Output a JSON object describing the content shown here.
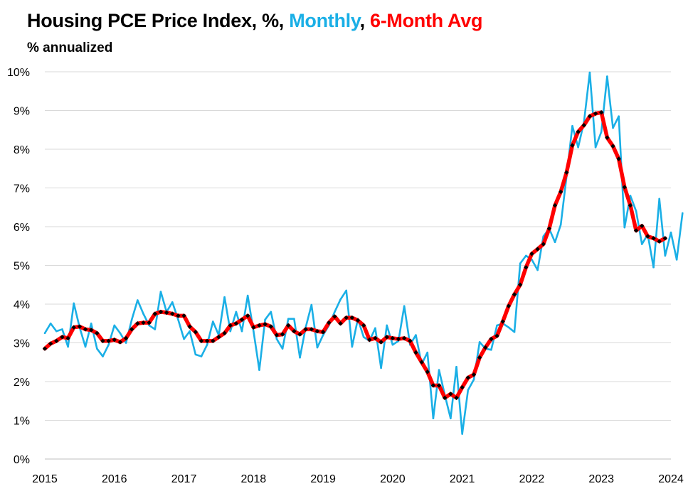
{
  "title": {
    "part1": "Housing PCE Price Index, %, ",
    "part2": "Monthly",
    "part3": ", ",
    "part4": "6-Month Avg",
    "color_monthly": "#1AAFE6",
    "color_avg": "#FF0000"
  },
  "subtitle": "% annualized",
  "chart_data": {
    "type": "line",
    "title": "Housing PCE Price Index, %, Monthly, 6-Month Avg",
    "subtitle": "% annualized",
    "xlabel": "",
    "ylabel": "",
    "ylim": [
      0,
      10
    ],
    "xlim": [
      2015,
      2024
    ],
    "grid": true,
    "yticks": [
      "0%",
      "1%",
      "2%",
      "3%",
      "4%",
      "5%",
      "6%",
      "7%",
      "8%",
      "9%",
      "10%"
    ],
    "xticks": [
      "2015",
      "2016",
      "2017",
      "2018",
      "2019",
      "2020",
      "2021",
      "2022",
      "2023",
      "2024"
    ],
    "x_start": 2015.0,
    "x_step_months": 1,
    "series": [
      {
        "name": "Monthly",
        "color": "#1AAFE6",
        "values": [
          3.25,
          3.5,
          3.3,
          3.35,
          2.9,
          4.02,
          3.4,
          2.9,
          3.5,
          2.85,
          2.65,
          2.95,
          3.45,
          3.25,
          3.0,
          3.6,
          4.1,
          3.75,
          3.45,
          3.35,
          4.32,
          3.8,
          4.05,
          3.6,
          3.1,
          3.3,
          2.7,
          2.65,
          2.95,
          3.55,
          3.2,
          4.18,
          3.3,
          3.8,
          3.3,
          4.22,
          3.3,
          2.3,
          3.6,
          3.8,
          3.1,
          2.85,
          3.62,
          3.62,
          2.62,
          3.4,
          3.98,
          2.88,
          3.2,
          3.45,
          3.8,
          4.12,
          4.35,
          2.9,
          3.62,
          3.15,
          3.05,
          3.38,
          2.35,
          3.45,
          2.95,
          3.05,
          3.95,
          2.95,
          3.2,
          2.45,
          2.75,
          1.05,
          2.3,
          1.65,
          1.05,
          2.38,
          0.65,
          1.78,
          2.05,
          3.02,
          2.85,
          2.82,
          3.45,
          3.5,
          3.4,
          3.28,
          5.05,
          5.25,
          5.15,
          4.88,
          5.75,
          5.95,
          5.6,
          6.05,
          7.3,
          8.6,
          8.05,
          8.7,
          9.98,
          8.05,
          8.45,
          9.88,
          8.55,
          8.85,
          5.98,
          6.8,
          6.4,
          5.55,
          5.8,
          4.95,
          6.72,
          5.25,
          5.85,
          5.15,
          6.35
        ]
      },
      {
        "name": "6-Month Avg",
        "color": "#FF0000",
        "marker_color": "#000000",
        "values": [
          2.85,
          2.98,
          3.05,
          3.15,
          3.12,
          3.4,
          3.42,
          3.35,
          3.33,
          3.25,
          3.05,
          3.05,
          3.08,
          3.02,
          3.12,
          3.35,
          3.5,
          3.52,
          3.52,
          3.75,
          3.8,
          3.78,
          3.75,
          3.7,
          3.7,
          3.42,
          3.28,
          3.05,
          3.05,
          3.05,
          3.15,
          3.25,
          3.45,
          3.5,
          3.6,
          3.7,
          3.4,
          3.45,
          3.48,
          3.42,
          3.2,
          3.22,
          3.45,
          3.3,
          3.22,
          3.35,
          3.35,
          3.3,
          3.28,
          3.52,
          3.68,
          3.5,
          3.65,
          3.65,
          3.58,
          3.45,
          3.08,
          3.12,
          3.02,
          3.15,
          3.12,
          3.1,
          3.12,
          3.05,
          2.75,
          2.5,
          2.25,
          1.9,
          1.9,
          1.58,
          1.68,
          1.58,
          1.85,
          2.1,
          2.18,
          2.62,
          2.88,
          3.1,
          3.18,
          3.55,
          3.95,
          4.25,
          4.5,
          4.95,
          5.3,
          5.42,
          5.55,
          5.95,
          6.55,
          6.9,
          7.4,
          8.1,
          8.45,
          8.62,
          8.85,
          8.92,
          8.95,
          8.3,
          8.08,
          7.75,
          7.02,
          6.55,
          5.9,
          6.02,
          5.75,
          5.7,
          5.62,
          5.7
        ]
      }
    ]
  }
}
